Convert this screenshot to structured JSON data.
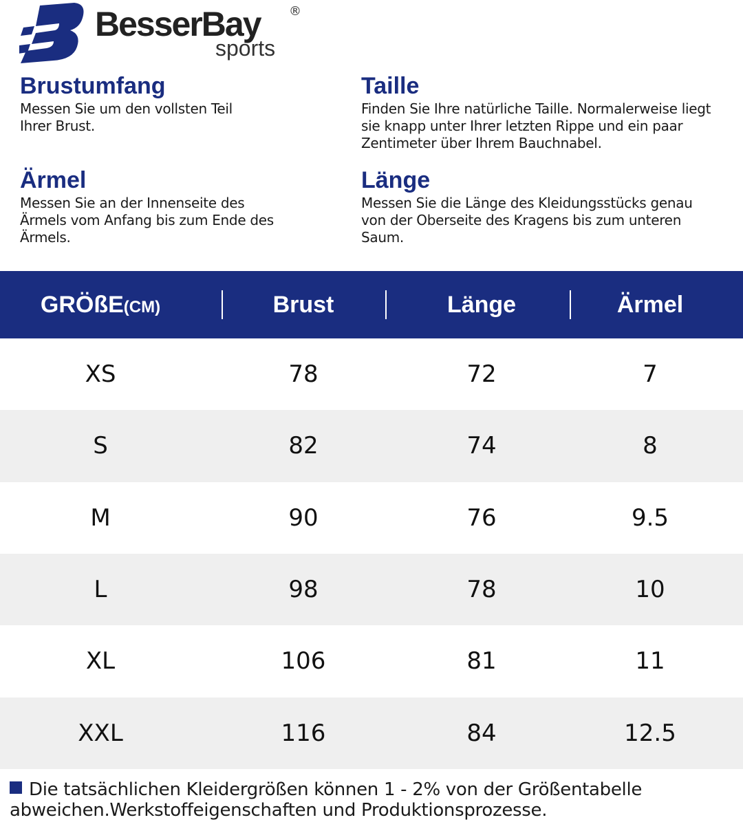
{
  "brand": {
    "name": "BesserBay",
    "sub": "sports",
    "reg": "®",
    "color": "#1a2d80"
  },
  "sections": [
    {
      "title": "Brustumfang",
      "text": "Messen Sie um den vollsten Teil Ihrer Brust."
    },
    {
      "title": "Taille",
      "text": "Finden Sie Ihre natürliche Taille. Normalerweise liegt sie knapp unter Ihrer letzten Rippe und ein paar Zentimeter über Ihrem Bauchnabel."
    },
    {
      "title": "Ärmel",
      "text": "Messen Sie an der Innenseite des Ärmels vom Anfang bis zum Ende des Ärmels."
    },
    {
      "title": "Länge",
      "text": "Messen Sie die Länge des Kleidungsstücks genau von der Oberseite des Kragens bis zum unteren Saum."
    }
  ],
  "table": {
    "headers": {
      "size": "GRÖßE",
      "unit": "(CM)",
      "brust": "Brust",
      "laenge": "Länge",
      "aermel": "Ärmel"
    },
    "rows": [
      [
        "XS",
        "78",
        "72",
        "7"
      ],
      [
        "S",
        "82",
        "74",
        "8"
      ],
      [
        "M",
        "90",
        "76",
        "9.5"
      ],
      [
        "L",
        "98",
        "78",
        "10"
      ],
      [
        "XL",
        "106",
        "81",
        "11"
      ],
      [
        "XXL",
        "116",
        "84",
        "12.5"
      ]
    ]
  },
  "footnote": "Die tatsächlichen Kleidergrößen können 1 - 2% von der Größentabelle abweichen.Werkstoffeigenschaften und Produktionsprozesse."
}
